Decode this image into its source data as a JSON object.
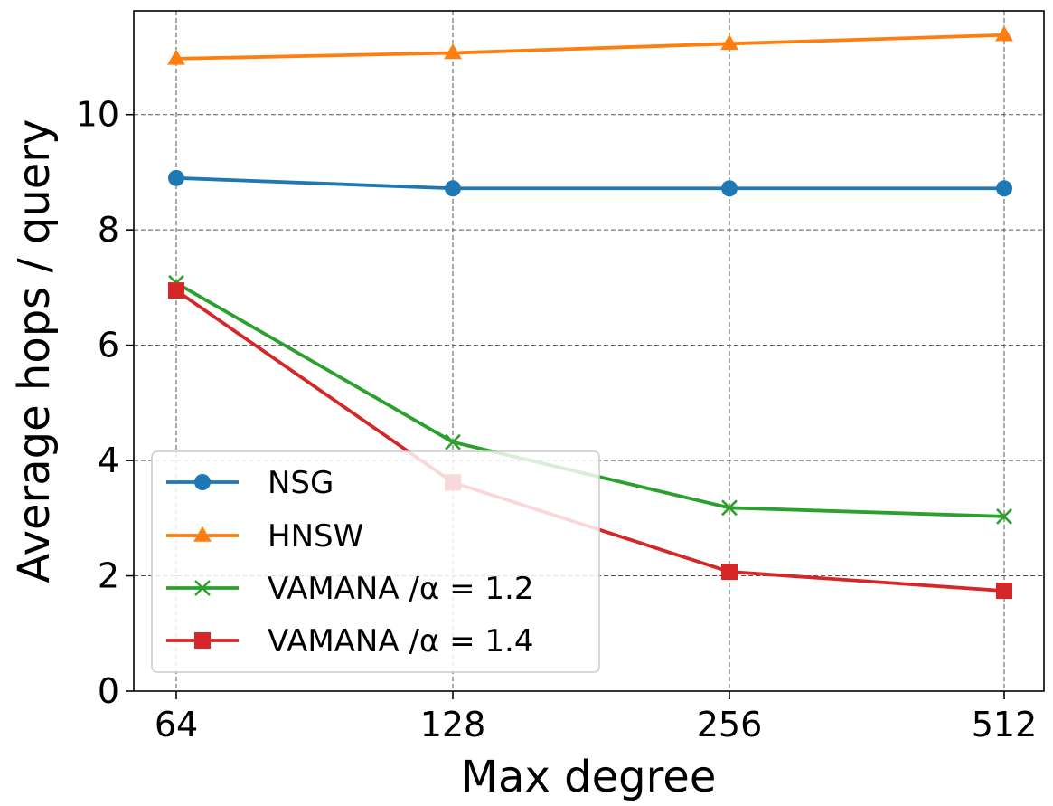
{
  "chart_data": {
    "type": "line",
    "title": "",
    "xlabel": "Max degree",
    "ylabel": "Average  hops / query",
    "x": [
      "64",
      "128",
      "256",
      "512"
    ],
    "ylim": [
      0,
      11.8
    ],
    "yticks": [
      0,
      2,
      4,
      6,
      8,
      10
    ],
    "grid": true,
    "legend_position": "lower-left",
    "series": [
      {
        "name": "NSG",
        "color": "#1f77b4",
        "marker": "circle",
        "values": [
          8.9,
          8.72,
          8.72,
          8.72
        ]
      },
      {
        "name": "HNSW",
        "color": "#ff7f0e",
        "marker": "triangle",
        "values": [
          10.97,
          11.07,
          11.23,
          11.38
        ]
      },
      {
        "name": "VAMANA /α = 1.2",
        "color": "#2ca02c",
        "marker": "x",
        "values": [
          7.08,
          4.32,
          3.18,
          3.03
        ]
      },
      {
        "name": "VAMANA /α = 1.4",
        "color": "#d62728",
        "marker": "square",
        "values": [
          6.95,
          3.62,
          2.07,
          1.74
        ]
      }
    ]
  }
}
